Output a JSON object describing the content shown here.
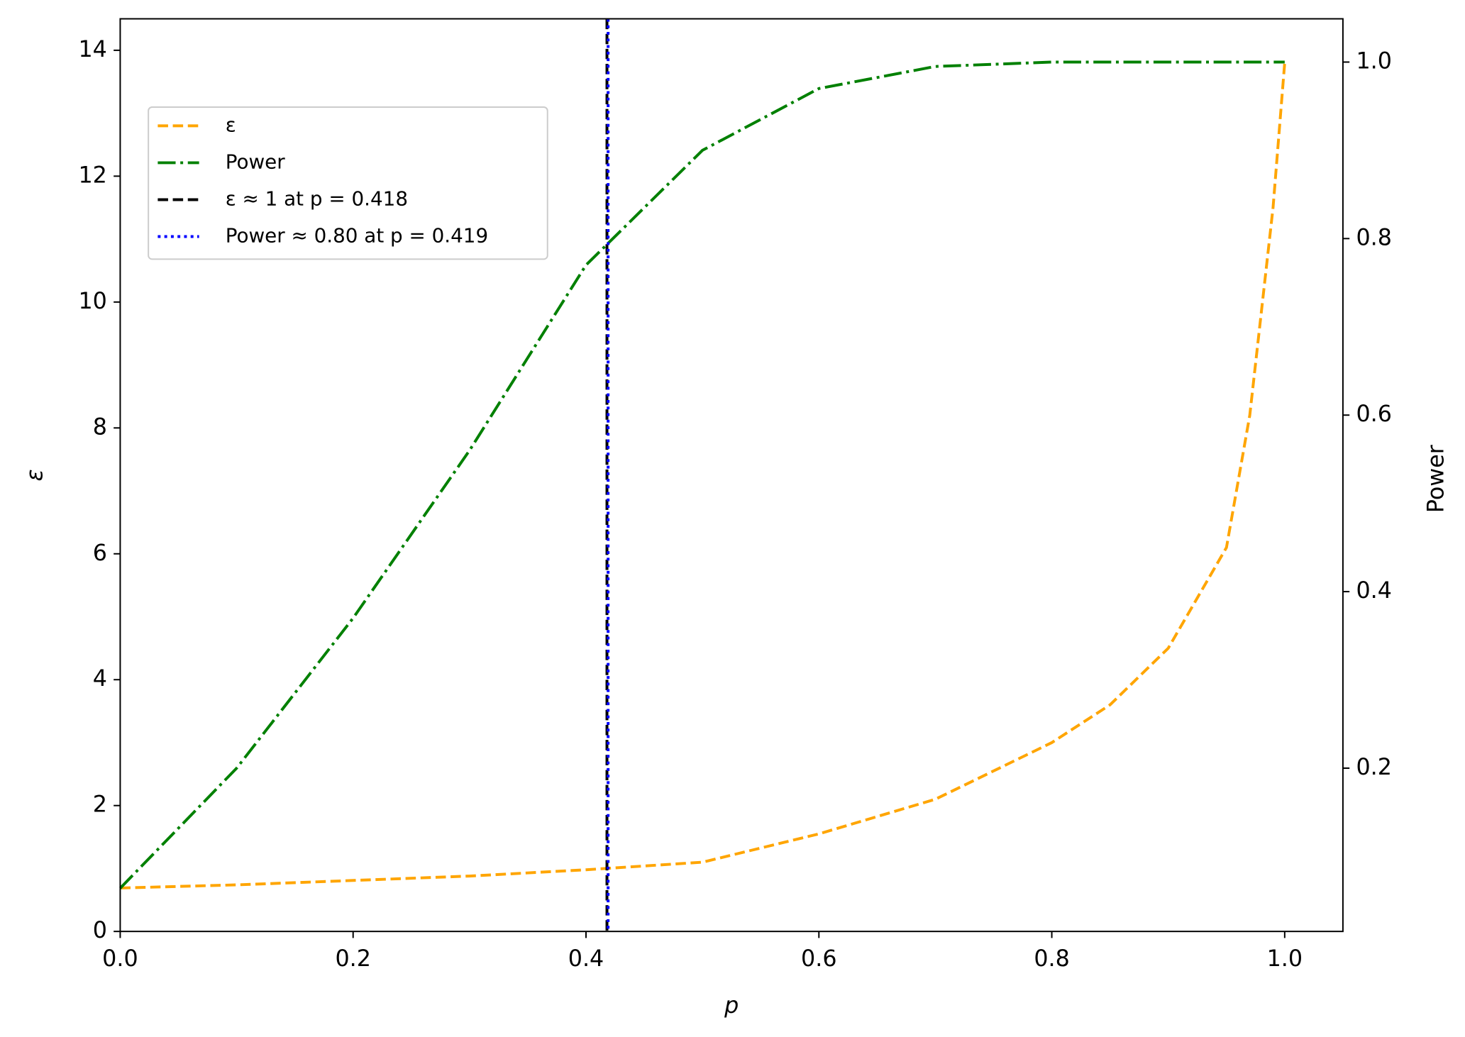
{
  "chart_data": {
    "type": "line",
    "x_label": "p",
    "y_label": "ε",
    "y2_label": "Power",
    "x": [
      0,
      0.1,
      0.2,
      0.3,
      0.4,
      0.5,
      0.6,
      0.7,
      0.8,
      0.85,
      0.9,
      0.95,
      0.97,
      0.99,
      1.0
    ],
    "series": [
      {
        "name": "ε",
        "color": "#ffa500",
        "style": "dashed",
        "values": [
          0.69,
          0.74,
          0.81,
          0.88,
          0.98,
          1.1,
          1.55,
          2.1,
          3.0,
          3.6,
          4.5,
          6.1,
          8.2,
          11.5,
          13.8
        ]
      },
      {
        "name": "Power",
        "color": "#008000",
        "style": "dashdot",
        "axis": "y2",
        "values": [
          0.064,
          0.2,
          0.37,
          0.56,
          0.77,
          0.9,
          0.97,
          0.995,
          1.0,
          1.0,
          1.0,
          1.0,
          1.0,
          1.0,
          1.0
        ]
      }
    ],
    "vlines": [
      {
        "name": "ε ≈ 1 at p = 0.418",
        "x": 0.418,
        "color": "#000000",
        "style": "dashed"
      },
      {
        "name": "Power  ≈ 0.80 at p = 0.419",
        "x": 0.419,
        "color": "#0000ff",
        "style": "dotted"
      }
    ],
    "xlim": [
      0,
      1.05
    ],
    "xticks": [
      {
        "value": 0,
        "label": "0.0"
      },
      0.2,
      0.4,
      0.6,
      0.8,
      {
        "value": 1,
        "label": "1.0"
      }
    ],
    "ylim": [
      0,
      14.5
    ],
    "yticks": [
      0,
      2,
      4,
      6,
      8,
      10,
      12,
      14
    ],
    "y2lim": [
      0.015,
      1.049
    ],
    "y2ticks": [
      0.2,
      0.4,
      0.6,
      0.8,
      {
        "value": 1,
        "label": "1.0"
      }
    ],
    "y2_color": "#ff0000",
    "legend": "upper left"
  }
}
